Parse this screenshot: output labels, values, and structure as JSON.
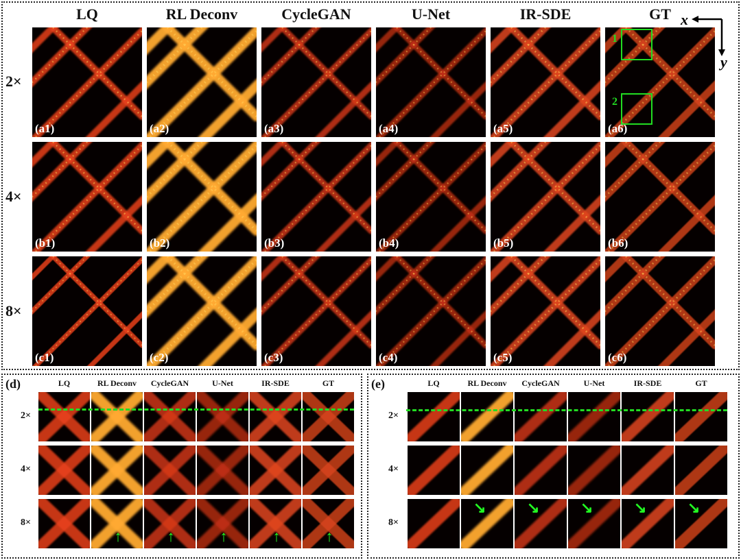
{
  "main": {
    "columns": [
      "LQ",
      "RL Deconv",
      "CycleGAN",
      "U-Net",
      "IR-SDE",
      "GT"
    ],
    "rows": [
      "2×",
      "4×",
      "8×"
    ],
    "panel_labels": [
      [
        "(a1)",
        "(a2)",
        "(a3)",
        "(a4)",
        "(a5)",
        "(a6)"
      ],
      [
        "(b1)",
        "(b2)",
        "(b3)",
        "(b4)",
        "(b5)",
        "(b6)"
      ],
      [
        "(c1)",
        "(c2)",
        "(c3)",
        "(c4)",
        "(c5)",
        "(c6)"
      ]
    ],
    "roi_labels": [
      "1",
      "2"
    ],
    "axes": {
      "x": "x",
      "y": "y"
    }
  },
  "inset_d": {
    "tag": "(d)",
    "columns": [
      "LQ",
      "RL Deconv",
      "CycleGAN",
      "U-Net",
      "IR-SDE",
      "GT"
    ],
    "rows": [
      "2×",
      "4×",
      "8×"
    ]
  },
  "inset_e": {
    "tag": "(e)",
    "columns": [
      "LQ",
      "RL Deconv",
      "CycleGAN",
      "U-Net",
      "IR-SDE",
      "GT"
    ],
    "rows": [
      "2×",
      "4×",
      "8×"
    ]
  },
  "colors": {
    "background": "#050000",
    "highlight": "#22dd22",
    "signal": "#ff4a10"
  }
}
